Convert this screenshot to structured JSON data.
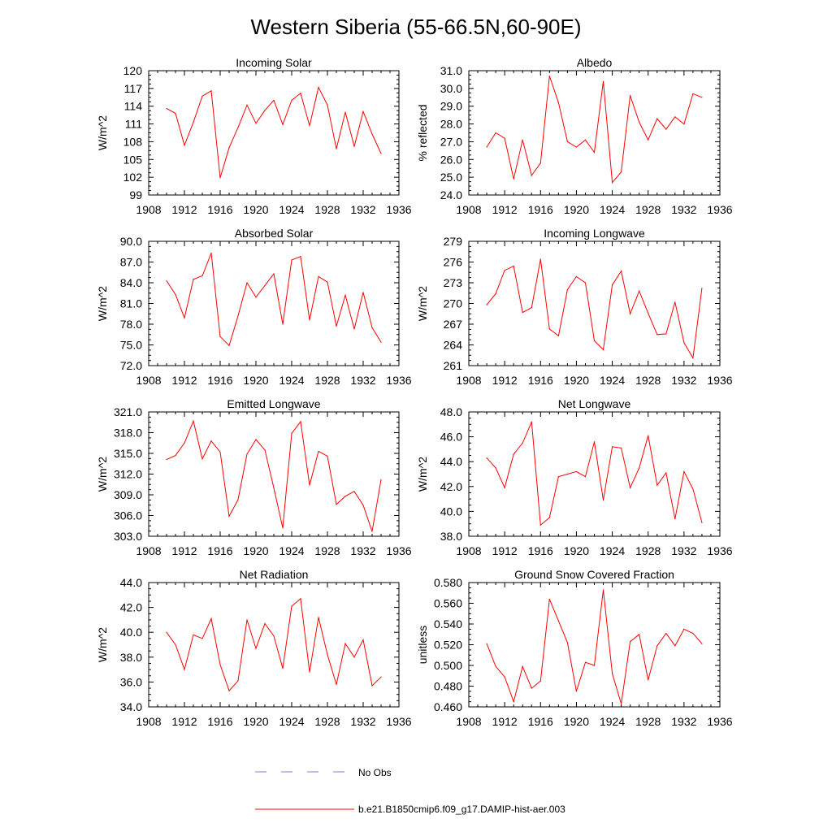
{
  "figure_title": "Western Siberia (55-66.5N,60-90E)",
  "colors": {
    "model_line": "#ff0000",
    "obs_line": "#7b86c4",
    "axis": "#000000"
  },
  "legend": {
    "obs_label": "No Obs",
    "model_label": "b.e21.B1850cmip6.f09_g17.DAMIP-hist-aer.003"
  },
  "chart_data": [
    {
      "type": "line",
      "title": "Incoming Solar",
      "ylabel": "W/m^2",
      "xlim": [
        1908,
        1936
      ],
      "xticks": [
        1908,
        1912,
        1916,
        1920,
        1924,
        1928,
        1932,
        1936
      ],
      "ylim": [
        99,
        120
      ],
      "yticks": [
        "99",
        "102",
        "105",
        "108",
        "111",
        "114",
        "117",
        "120"
      ],
      "ytick_step": 3,
      "x": [
        1910,
        1911,
        1912,
        1913,
        1914,
        1915,
        1916,
        1917,
        1918,
        1919,
        1920,
        1921,
        1922,
        1923,
        1924,
        1925,
        1926,
        1927,
        1928,
        1929,
        1930,
        1931,
        1932,
        1933,
        1934
      ],
      "values": [
        113.6,
        112.8,
        107.4,
        111.3,
        115.7,
        116.6,
        101.9,
        107.0,
        110.4,
        114.2,
        111.1,
        113.3,
        115.0,
        110.9,
        115.0,
        116.2,
        110.7,
        117.2,
        114.2,
        106.8,
        113.0,
        107.2,
        113.1,
        109.3,
        106.0
      ]
    },
    {
      "type": "line",
      "title": "Albedo",
      "ylabel": "% reflected",
      "xlim": [
        1908,
        1936
      ],
      "xticks": [
        1908,
        1912,
        1916,
        1920,
        1924,
        1928,
        1932,
        1936
      ],
      "ylim": [
        24,
        31
      ],
      "yticks": [
        "24.0",
        "25.0",
        "26.0",
        "27.0",
        "28.0",
        "29.0",
        "30.0",
        "31.0"
      ],
      "ytick_step": 1,
      "x": [
        1910,
        1911,
        1912,
        1913,
        1914,
        1915,
        1916,
        1917,
        1918,
        1919,
        1920,
        1921,
        1922,
        1923,
        1924,
        1925,
        1926,
        1927,
        1928,
        1929,
        1930,
        1931,
        1932,
        1933,
        1934
      ],
      "values": [
        26.7,
        27.5,
        27.2,
        24.9,
        27.1,
        25.1,
        25.8,
        30.7,
        29.2,
        27.0,
        26.7,
        27.1,
        26.4,
        30.4,
        24.7,
        25.3,
        29.6,
        28.1,
        27.1,
        28.3,
        27.7,
        28.4,
        28.0,
        29.7,
        29.5
      ]
    },
    {
      "type": "line",
      "title": "Absorbed Solar",
      "ylabel": "W/m^2",
      "xlim": [
        1908,
        1936
      ],
      "xticks": [
        1908,
        1912,
        1916,
        1920,
        1924,
        1928,
        1932,
        1936
      ],
      "ylim": [
        72,
        90
      ],
      "yticks": [
        "72.0",
        "75.0",
        "78.0",
        "81.0",
        "84.0",
        "87.0",
        "90.0"
      ],
      "ytick_step": 3,
      "x": [
        1910,
        1911,
        1912,
        1913,
        1914,
        1915,
        1916,
        1917,
        1918,
        1919,
        1920,
        1921,
        1922,
        1923,
        1924,
        1925,
        1926,
        1927,
        1928,
        1929,
        1930,
        1931,
        1932,
        1933,
        1934
      ],
      "values": [
        84.3,
        82.3,
        78.9,
        84.5,
        85.0,
        88.3,
        76.2,
        74.9,
        79.2,
        84.0,
        81.9,
        83.6,
        85.3,
        78.0,
        87.3,
        87.8,
        78.6,
        84.9,
        84.1,
        77.7,
        82.2,
        77.3,
        82.6,
        77.5,
        75.4
      ]
    },
    {
      "type": "line",
      "title": "Incoming Longwave",
      "ylabel": "W/m^2",
      "xlim": [
        1908,
        1936
      ],
      "xticks": [
        1908,
        1912,
        1916,
        1920,
        1924,
        1928,
        1932,
        1936
      ],
      "ylim": [
        261,
        279
      ],
      "yticks": [
        "261",
        "264",
        "267",
        "270",
        "273",
        "276",
        "279"
      ],
      "ytick_step": 3,
      "x": [
        1910,
        1911,
        1912,
        1913,
        1914,
        1915,
        1916,
        1917,
        1918,
        1919,
        1920,
        1921,
        1922,
        1923,
        1924,
        1925,
        1926,
        1927,
        1928,
        1929,
        1930,
        1931,
        1932,
        1933,
        1934
      ],
      "values": [
        269.8,
        271.4,
        274.8,
        275.4,
        268.7,
        269.4,
        276.4,
        266.3,
        265.3,
        272.0,
        273.9,
        273.0,
        264.6,
        263.3,
        272.7,
        274.7,
        268.5,
        271.8,
        268.6,
        265.5,
        265.6,
        270.2,
        264.3,
        262.1,
        272.2
      ]
    },
    {
      "type": "line",
      "title": "Emitted Longwave",
      "ylabel": "W/m^2",
      "xlim": [
        1908,
        1936
      ],
      "xticks": [
        1908,
        1912,
        1916,
        1920,
        1924,
        1928,
        1932,
        1936
      ],
      "ylim": [
        303,
        321
      ],
      "yticks": [
        "303.0",
        "306.0",
        "309.0",
        "312.0",
        "315.0",
        "318.0",
        "321.0"
      ],
      "ytick_step": 3,
      "x": [
        1910,
        1911,
        1912,
        1913,
        1914,
        1915,
        1916,
        1917,
        1918,
        1919,
        1920,
        1921,
        1922,
        1923,
        1924,
        1925,
        1926,
        1927,
        1928,
        1929,
        1930,
        1931,
        1932,
        1933,
        1934
      ],
      "values": [
        314.1,
        314.7,
        316.5,
        319.7,
        314.2,
        316.8,
        315.2,
        305.9,
        308.3,
        314.9,
        317.0,
        315.5,
        310.0,
        304.2,
        317.9,
        319.6,
        310.4,
        315.3,
        314.6,
        307.6,
        308.8,
        309.5,
        307.5,
        303.7,
        311.2
      ]
    },
    {
      "type": "line",
      "title": "Net Longwave",
      "ylabel": "W/m^2",
      "xlim": [
        1908,
        1936
      ],
      "xticks": [
        1908,
        1912,
        1916,
        1920,
        1924,
        1928,
        1932,
        1936
      ],
      "ylim": [
        38,
        48
      ],
      "yticks": [
        "38.0",
        "40.0",
        "42.0",
        "44.0",
        "46.0",
        "48.0"
      ],
      "ytick_step": 2,
      "x": [
        1910,
        1911,
        1912,
        1913,
        1914,
        1915,
        1916,
        1917,
        1918,
        1919,
        1920,
        1921,
        1922,
        1923,
        1924,
        1925,
        1926,
        1927,
        1928,
        1929,
        1930,
        1931,
        1932,
        1933,
        1934
      ],
      "values": [
        44.3,
        43.5,
        41.9,
        44.6,
        45.5,
        47.2,
        38.9,
        39.5,
        42.8,
        43.0,
        43.2,
        42.8,
        45.6,
        40.9,
        45.2,
        45.1,
        41.9,
        43.5,
        46.1,
        42.1,
        43.1,
        39.4,
        43.2,
        41.8,
        39.1
      ]
    },
    {
      "type": "line",
      "title": "Net Radiation",
      "ylabel": "W/m^2",
      "xlim": [
        1908,
        1936
      ],
      "xticks": [
        1908,
        1912,
        1916,
        1920,
        1924,
        1928,
        1932,
        1936
      ],
      "ylim": [
        34,
        44
      ],
      "yticks": [
        "34.0",
        "36.0",
        "38.0",
        "40.0",
        "42.0",
        "44.0"
      ],
      "ytick_step": 2,
      "x": [
        1910,
        1911,
        1912,
        1913,
        1914,
        1915,
        1916,
        1917,
        1918,
        1919,
        1920,
        1921,
        1922,
        1923,
        1924,
        1925,
        1926,
        1927,
        1928,
        1929,
        1930,
        1931,
        1932,
        1933,
        1934
      ],
      "values": [
        40.0,
        39.0,
        37.0,
        39.8,
        39.5,
        41.1,
        37.4,
        35.3,
        36.1,
        41.0,
        38.7,
        40.7,
        39.7,
        37.1,
        42.1,
        42.7,
        36.8,
        41.2,
        38.2,
        35.8,
        39.1,
        38.0,
        39.4,
        35.7,
        36.4
      ]
    },
    {
      "type": "line",
      "title": "Ground Snow Covered Fraction",
      "ylabel": "unitless",
      "xlim": [
        1908,
        1936
      ],
      "xticks": [
        1908,
        1912,
        1916,
        1920,
        1924,
        1928,
        1932,
        1936
      ],
      "ylim": [
        0.46,
        0.58
      ],
      "yticks": [
        "0.460",
        "0.480",
        "0.500",
        "0.520",
        "0.540",
        "0.560",
        "0.580"
      ],
      "ytick_step": 0.02,
      "x": [
        1910,
        1911,
        1912,
        1913,
        1914,
        1915,
        1916,
        1917,
        1918,
        1919,
        1920,
        1921,
        1922,
        1923,
        1924,
        1925,
        1926,
        1927,
        1928,
        1929,
        1930,
        1931,
        1932,
        1933,
        1934
      ],
      "values": [
        0.521,
        0.499,
        0.489,
        0.465,
        0.499,
        0.478,
        0.485,
        0.564,
        0.543,
        0.522,
        0.475,
        0.503,
        0.5,
        0.573,
        0.492,
        0.463,
        0.523,
        0.53,
        0.486,
        0.519,
        0.531,
        0.519,
        0.535,
        0.531,
        0.521
      ]
    }
  ]
}
